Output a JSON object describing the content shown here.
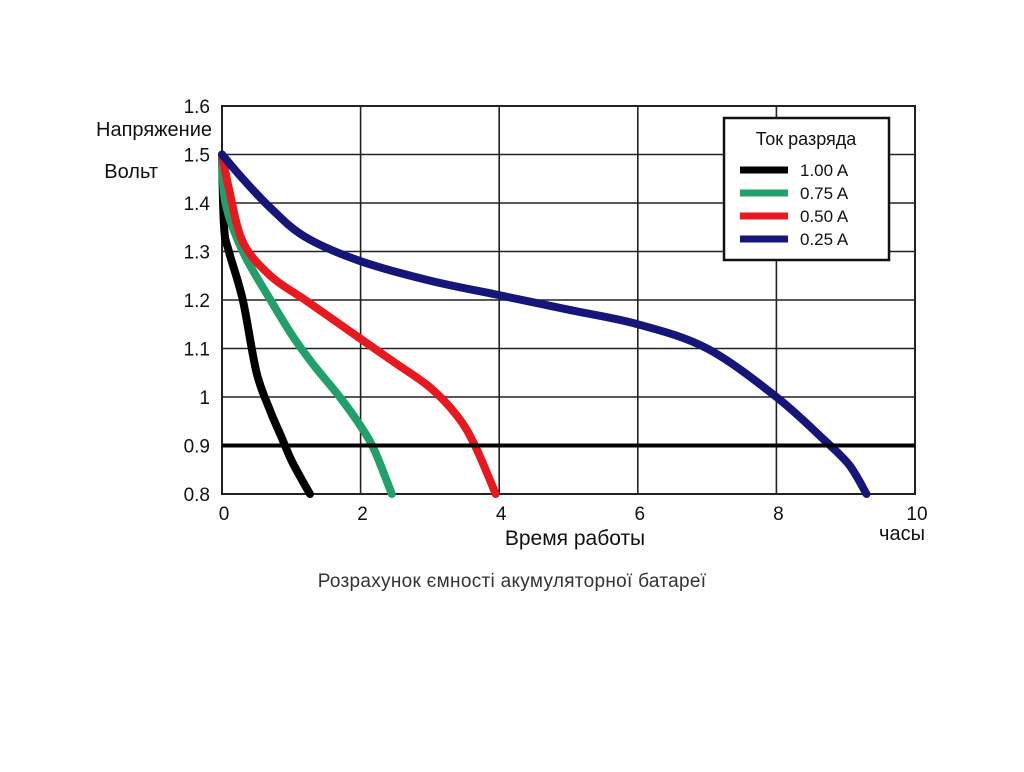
{
  "chart_data": {
    "type": "line",
    "ylabel_line1": "Напряжение",
    "ylabel_line2": "Вольт",
    "xlabel": "Время работы",
    "x_unit": "часы",
    "xlim": [
      0,
      10
    ],
    "ylim": [
      0.8,
      1.6
    ],
    "x_ticks": [
      0,
      2,
      4,
      6,
      8,
      10
    ],
    "y_ticks": [
      "0.8",
      "0.9",
      "1",
      "1.1",
      "1.2",
      "1.3",
      "1.4",
      "1.5",
      "1.6"
    ],
    "grid": true,
    "reference_line_y": 0.9,
    "legend": {
      "title": "Ток разряда",
      "position": "top-right"
    },
    "series": [
      {
        "name": "1.00  A",
        "color": "#000000",
        "points": [
          [
            0,
            1.5
          ],
          [
            0.03,
            1.35
          ],
          [
            0.1,
            1.3
          ],
          [
            0.3,
            1.2
          ],
          [
            0.5,
            1.05
          ],
          [
            0.7,
            0.97
          ],
          [
            0.85,
            0.92
          ],
          [
            1.0,
            0.87
          ],
          [
            1.15,
            0.83
          ],
          [
            1.27,
            0.8
          ]
        ]
      },
      {
        "name": "0.75  A",
        "color": "#22a06b",
        "points": [
          [
            0,
            1.5
          ],
          [
            0.05,
            1.4
          ],
          [
            0.3,
            1.3
          ],
          [
            0.7,
            1.2
          ],
          [
            1.0,
            1.13
          ],
          [
            1.3,
            1.07
          ],
          [
            1.7,
            1.0
          ],
          [
            2.0,
            0.94
          ],
          [
            2.2,
            0.89
          ],
          [
            2.45,
            0.8
          ]
        ]
      },
      {
        "name": "0.50  A",
        "color": "#e8191e",
        "points": [
          [
            0,
            1.5
          ],
          [
            0.1,
            1.43
          ],
          [
            0.3,
            1.32
          ],
          [
            0.7,
            1.25
          ],
          [
            1.2,
            1.2
          ],
          [
            2.0,
            1.12
          ],
          [
            2.5,
            1.07
          ],
          [
            3.0,
            1.02
          ],
          [
            3.4,
            0.96
          ],
          [
            3.65,
            0.9
          ],
          [
            3.95,
            0.8
          ]
        ]
      },
      {
        "name": "0.25  A",
        "color": "#15157a",
        "points": [
          [
            0,
            1.5
          ],
          [
            0.3,
            1.45
          ],
          [
            0.7,
            1.39
          ],
          [
            1.2,
            1.33
          ],
          [
            2.0,
            1.28
          ],
          [
            3.0,
            1.24
          ],
          [
            4.0,
            1.21
          ],
          [
            5.0,
            1.18
          ],
          [
            6.0,
            1.15
          ],
          [
            7.0,
            1.1
          ],
          [
            8.0,
            1.0
          ],
          [
            8.7,
            0.91
          ],
          [
            9.05,
            0.86
          ],
          [
            9.3,
            0.8
          ]
        ]
      }
    ]
  },
  "caption": "Розрахунок ємності акумуляторної батареї"
}
